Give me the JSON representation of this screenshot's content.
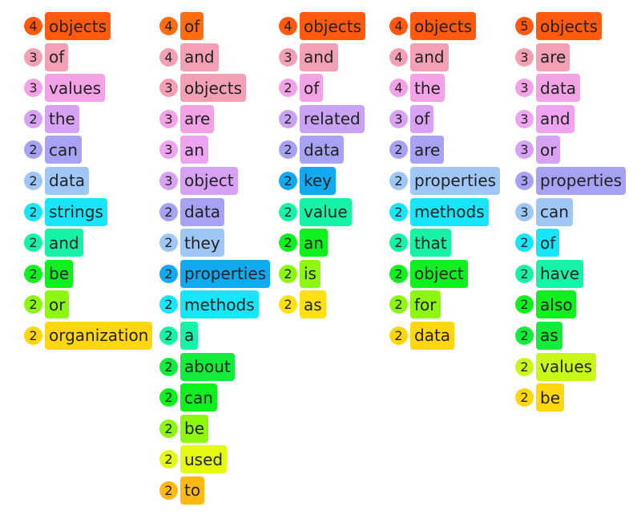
{
  "columns": [
    {
      "entries": [
        {
          "count": "4",
          "word": "objects",
          "color": "#ff5a10"
        },
        {
          "count": "3",
          "word": "of",
          "color": "#f4a0b4"
        },
        {
          "count": "3",
          "word": "values",
          "color": "#f3a2e6"
        },
        {
          "count": "2",
          "word": "the",
          "color": "#d8a2f4"
        },
        {
          "count": "2",
          "word": "can",
          "color": "#a7a2f3"
        },
        {
          "count": "2",
          "word": "data",
          "color": "#9ec7f6"
        },
        {
          "count": "2",
          "word": "strings",
          "color": "#17e6f8"
        },
        {
          "count": "2",
          "word": "and",
          "color": "#16f2a6"
        },
        {
          "count": "2",
          "word": "be",
          "color": "#10f01f"
        },
        {
          "count": "2",
          "word": "or",
          "color": "#8df711"
        },
        {
          "count": "2",
          "word": "organization",
          "color": "#ffd60f"
        }
      ]
    },
    {
      "entries": [
        {
          "count": "4",
          "word": "of",
          "color": "#ff6c12"
        },
        {
          "count": "4",
          "word": "and",
          "color": "#f4a0b4"
        },
        {
          "count": "3",
          "word": "objects",
          "color": "#f4a0b4"
        },
        {
          "count": "3",
          "word": "are",
          "color": "#f3a2e6"
        },
        {
          "count": "3",
          "word": "an",
          "color": "#eea4f0"
        },
        {
          "count": "3",
          "word": "object",
          "color": "#d8a2f4"
        },
        {
          "count": "2",
          "word": "data",
          "color": "#a7a2f3"
        },
        {
          "count": "2",
          "word": "they",
          "color": "#9ec7f6"
        },
        {
          "count": "2",
          "word": "properties",
          "color": "#11aaf0"
        },
        {
          "count": "2",
          "word": "methods",
          "color": "#17e6f8"
        },
        {
          "count": "2",
          "word": "a",
          "color": "#16f2a6"
        },
        {
          "count": "2",
          "word": "about",
          "color": "#14ec3c"
        },
        {
          "count": "2",
          "word": "can",
          "color": "#10f01f"
        },
        {
          "count": "2",
          "word": "be",
          "color": "#8df711"
        },
        {
          "count": "2",
          "word": "used",
          "color": "#e4fa12"
        },
        {
          "count": "2",
          "word": "to",
          "color": "#ffb814"
        }
      ]
    },
    {
      "entries": [
        {
          "count": "4",
          "word": "objects",
          "color": "#ff5a10"
        },
        {
          "count": "3",
          "word": "and",
          "color": "#f4a0b4"
        },
        {
          "count": "2",
          "word": "of",
          "color": "#f3a2e6"
        },
        {
          "count": "2",
          "word": "related",
          "color": "#c9a2f4"
        },
        {
          "count": "2",
          "word": "data",
          "color": "#a7a2f3"
        },
        {
          "count": "2",
          "word": "key",
          "color": "#11aaf0"
        },
        {
          "count": "2",
          "word": "value",
          "color": "#16f2a6"
        },
        {
          "count": "2",
          "word": "an",
          "color": "#10f01f"
        },
        {
          "count": "2",
          "word": "is",
          "color": "#8df711"
        },
        {
          "count": "2",
          "word": "as",
          "color": "#ffe013"
        }
      ]
    },
    {
      "entries": [
        {
          "count": "4",
          "word": "objects",
          "color": "#ff5a10"
        },
        {
          "count": "4",
          "word": "and",
          "color": "#f4a0b4"
        },
        {
          "count": "4",
          "word": "the",
          "color": "#f3a2e6"
        },
        {
          "count": "3",
          "word": "of",
          "color": "#d8a2f4"
        },
        {
          "count": "2",
          "word": "are",
          "color": "#a7a2f3"
        },
        {
          "count": "2",
          "word": "properties",
          "color": "#9ec7f6"
        },
        {
          "count": "2",
          "word": "methods",
          "color": "#17e6f8"
        },
        {
          "count": "2",
          "word": "that",
          "color": "#16f2a6"
        },
        {
          "count": "2",
          "word": "object",
          "color": "#10f01f"
        },
        {
          "count": "2",
          "word": "for",
          "color": "#8df711"
        },
        {
          "count": "2",
          "word": "data",
          "color": "#ffd60f"
        }
      ]
    },
    {
      "entries": [
        {
          "count": "5",
          "word": "objects",
          "color": "#ff5a10"
        },
        {
          "count": "3",
          "word": "are",
          "color": "#f4a0b4"
        },
        {
          "count": "3",
          "word": "data",
          "color": "#f3a2e6"
        },
        {
          "count": "3",
          "word": "and",
          "color": "#eea4f0"
        },
        {
          "count": "3",
          "word": "or",
          "color": "#d8a2f4"
        },
        {
          "count": "3",
          "word": "properties",
          "color": "#a7a2f3"
        },
        {
          "count": "3",
          "word": "can",
          "color": "#9ec7f6"
        },
        {
          "count": "2",
          "word": "of",
          "color": "#17e6f8"
        },
        {
          "count": "2",
          "word": "have",
          "color": "#16f2a6"
        },
        {
          "count": "2",
          "word": "also",
          "color": "#10f01f"
        },
        {
          "count": "2",
          "word": "as",
          "color": "#14ec3c"
        },
        {
          "count": "2",
          "word": "values",
          "color": "#c8f817"
        },
        {
          "count": "2",
          "word": "be",
          "color": "#ffd60f"
        }
      ]
    }
  ]
}
